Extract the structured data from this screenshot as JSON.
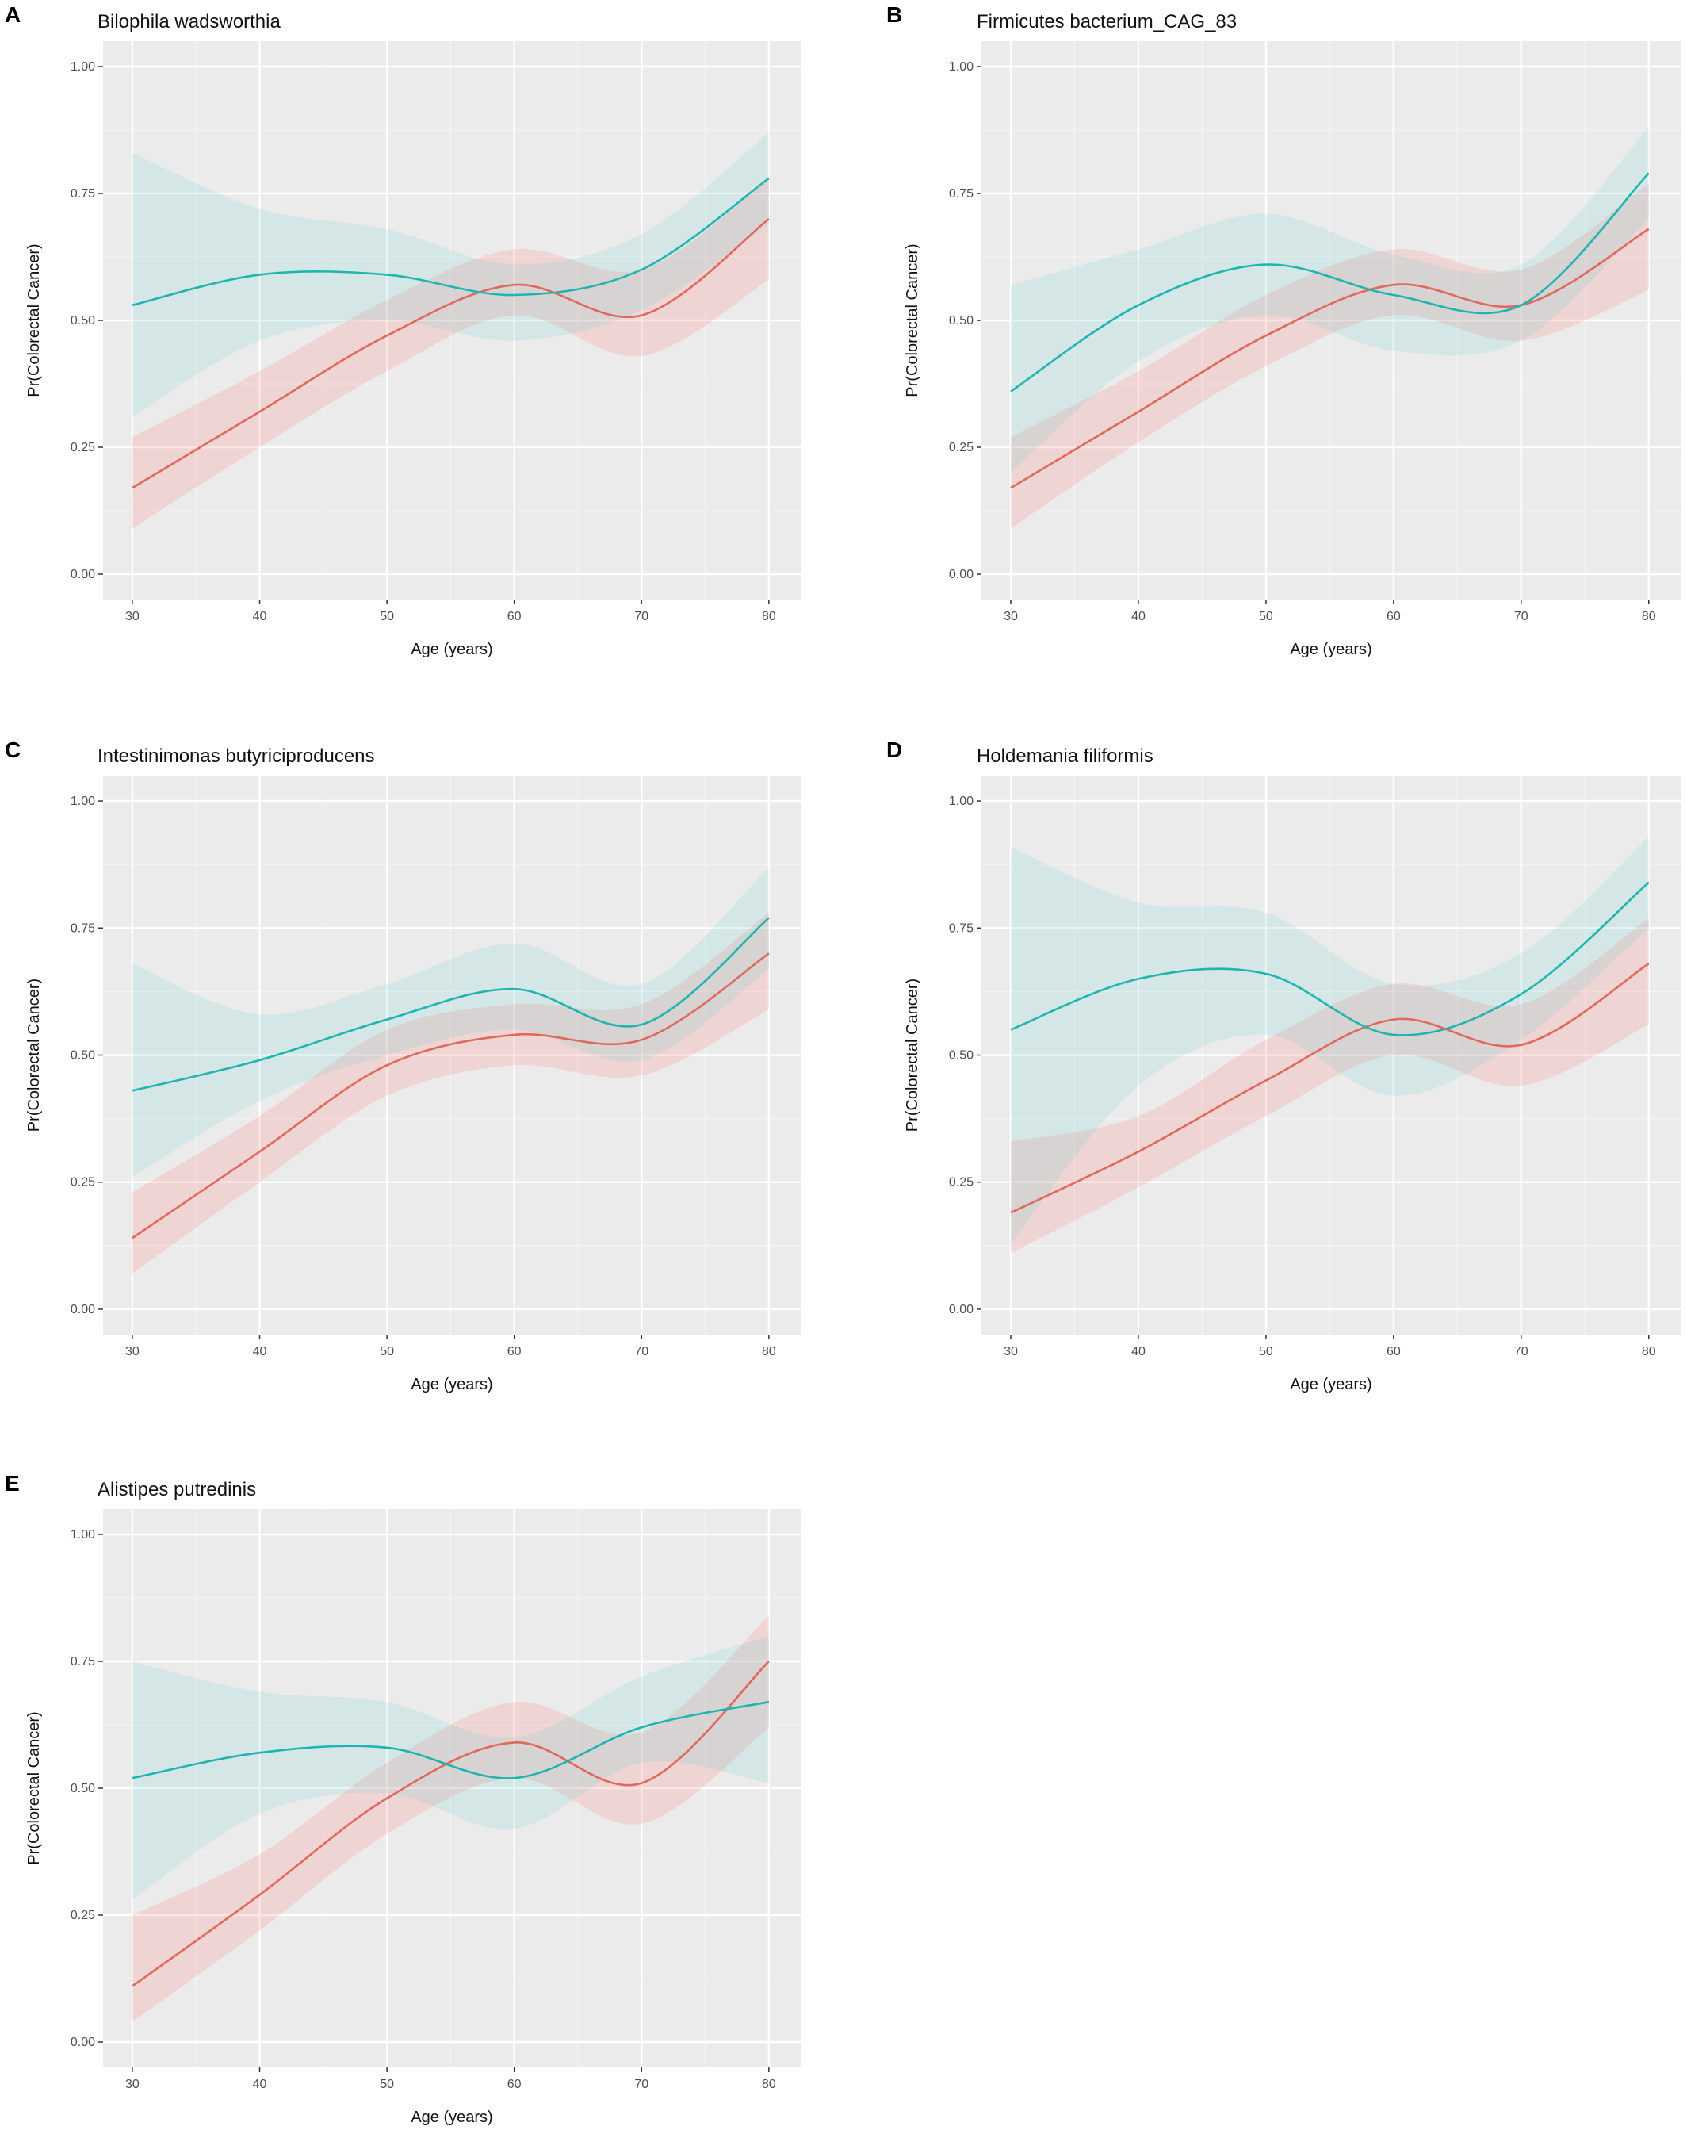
{
  "colors": {
    "panel_bg": "#ebebeb",
    "grid_major": "#ffffff",
    "grid_minor": "#f4f4f4",
    "series_red": "#e0685d",
    "series_teal": "#1eb5b1",
    "band_red": "#f8766d",
    "band_teal": "#7fd4d1"
  },
  "chart_data": [
    {
      "type": "line",
      "panel": "A",
      "title": "Bilophila wadsworthia",
      "xlabel": "Age (years)",
      "ylabel": "Pr(Colorectal Cancer)",
      "xlim": [
        27.7,
        82.5
      ],
      "ylim": [
        -0.05,
        1.05
      ],
      "xticks": [
        "30",
        "40",
        "50",
        "60",
        "70",
        "80"
      ],
      "yticks": [
        "0.00",
        "0.25",
        "0.50",
        "0.75",
        "1.00"
      ],
      "grid": true,
      "x": [
        30,
        40,
        50,
        60,
        70,
        80
      ],
      "series": [
        {
          "color": "series_red",
          "values": [
            0.17,
            0.32,
            0.47,
            0.57,
            0.51,
            0.7
          ],
          "lower": [
            0.09,
            0.25,
            0.4,
            0.51,
            0.43,
            0.58
          ],
          "upper": [
            0.27,
            0.4,
            0.54,
            0.64,
            0.6,
            0.78
          ]
        },
        {
          "color": "series_teal",
          "values": [
            0.53,
            0.59,
            0.59,
            0.55,
            0.6,
            0.78
          ],
          "lower": [
            0.31,
            0.46,
            0.5,
            0.46,
            0.52,
            0.69
          ],
          "upper": [
            0.83,
            0.72,
            0.68,
            0.61,
            0.67,
            0.87
          ]
        }
      ]
    },
    {
      "type": "line",
      "panel": "B",
      "title": "Firmicutes bacterium_CAG_83",
      "xlabel": "Age (years)",
      "ylabel": "Pr(Colorectal Cancer)",
      "xlim": [
        27.7,
        82.5
      ],
      "ylim": [
        -0.05,
        1.05
      ],
      "xticks": [
        "30",
        "40",
        "50",
        "60",
        "70",
        "80"
      ],
      "yticks": [
        "0.00",
        "0.25",
        "0.50",
        "0.75",
        "1.00"
      ],
      "grid": true,
      "x": [
        30,
        40,
        50,
        60,
        70,
        80
      ],
      "series": [
        {
          "color": "series_red",
          "values": [
            0.17,
            0.32,
            0.47,
            0.57,
            0.53,
            0.68
          ],
          "lower": [
            0.09,
            0.26,
            0.41,
            0.51,
            0.46,
            0.56
          ],
          "upper": [
            0.27,
            0.4,
            0.55,
            0.64,
            0.6,
            0.77
          ]
        },
        {
          "color": "series_teal",
          "values": [
            0.36,
            0.53,
            0.61,
            0.55,
            0.53,
            0.79
          ],
          "lower": [
            0.2,
            0.42,
            0.51,
            0.44,
            0.46,
            0.7
          ],
          "upper": [
            0.57,
            0.64,
            0.71,
            0.63,
            0.61,
            0.88
          ]
        }
      ]
    },
    {
      "type": "line",
      "panel": "C",
      "title": "Intestinimonas butyriciproducens",
      "xlabel": "Age (years)",
      "ylabel": "Pr(Colorectal Cancer)",
      "xlim": [
        27.7,
        82.5
      ],
      "ylim": [
        -0.05,
        1.05
      ],
      "xticks": [
        "30",
        "40",
        "50",
        "60",
        "70",
        "80"
      ],
      "yticks": [
        "0.00",
        "0.25",
        "0.50",
        "0.75",
        "1.00"
      ],
      "grid": true,
      "x": [
        30,
        40,
        50,
        60,
        70,
        80
      ],
      "series": [
        {
          "color": "series_red",
          "values": [
            0.14,
            0.31,
            0.48,
            0.54,
            0.53,
            0.7
          ],
          "lower": [
            0.07,
            0.25,
            0.42,
            0.48,
            0.46,
            0.59
          ],
          "upper": [
            0.23,
            0.38,
            0.55,
            0.6,
            0.6,
            0.78
          ]
        },
        {
          "color": "series_teal",
          "values": [
            0.43,
            0.49,
            0.57,
            0.63,
            0.56,
            0.77
          ],
          "lower": [
            0.26,
            0.41,
            0.5,
            0.55,
            0.49,
            0.67
          ],
          "upper": [
            0.68,
            0.58,
            0.64,
            0.72,
            0.64,
            0.87
          ]
        }
      ]
    },
    {
      "type": "line",
      "panel": "D",
      "title": "Holdemania filiformis",
      "xlabel": "Age (years)",
      "ylabel": "Pr(Colorectal Cancer)",
      "xlim": [
        27.7,
        82.5
      ],
      "ylim": [
        -0.05,
        1.05
      ],
      "xticks": [
        "30",
        "40",
        "50",
        "60",
        "70",
        "80"
      ],
      "yticks": [
        "0.00",
        "0.25",
        "0.50",
        "0.75",
        "1.00"
      ],
      "grid": true,
      "x": [
        30,
        40,
        50,
        60,
        70,
        80
      ],
      "series": [
        {
          "color": "series_red",
          "values": [
            0.19,
            0.31,
            0.45,
            0.57,
            0.52,
            0.68
          ],
          "lower": [
            0.11,
            0.24,
            0.38,
            0.5,
            0.44,
            0.56
          ],
          "upper": [
            0.33,
            0.38,
            0.53,
            0.64,
            0.6,
            0.77
          ]
        },
        {
          "color": "series_teal",
          "values": [
            0.55,
            0.65,
            0.66,
            0.54,
            0.62,
            0.84
          ],
          "lower": [
            0.13,
            0.44,
            0.54,
            0.42,
            0.53,
            0.75
          ],
          "upper": [
            0.91,
            0.8,
            0.78,
            0.64,
            0.7,
            0.93
          ]
        }
      ]
    },
    {
      "type": "line",
      "panel": "E",
      "title": "Alistipes putredinis",
      "xlabel": "Age (years)",
      "ylabel": "Pr(Colorectal Cancer)",
      "xlim": [
        27.7,
        82.5
      ],
      "ylim": [
        -0.05,
        1.05
      ],
      "xticks": [
        "30",
        "40",
        "50",
        "60",
        "70",
        "80"
      ],
      "yticks": [
        "0.00",
        "0.25",
        "0.50",
        "0.75",
        "1.00"
      ],
      "grid": true,
      "x": [
        30,
        40,
        50,
        60,
        70,
        80
      ],
      "series": [
        {
          "color": "series_red",
          "values": [
            0.11,
            0.29,
            0.48,
            0.59,
            0.51,
            0.75
          ],
          "lower": [
            0.04,
            0.22,
            0.41,
            0.52,
            0.43,
            0.62
          ],
          "upper": [
            0.25,
            0.37,
            0.55,
            0.67,
            0.61,
            0.84
          ]
        },
        {
          "color": "series_teal",
          "values": [
            0.52,
            0.57,
            0.58,
            0.52,
            0.62,
            0.67
          ],
          "lower": [
            0.28,
            0.45,
            0.49,
            0.42,
            0.55,
            0.51
          ],
          "upper": [
            0.75,
            0.69,
            0.67,
            0.6,
            0.72,
            0.8
          ]
        }
      ]
    }
  ]
}
